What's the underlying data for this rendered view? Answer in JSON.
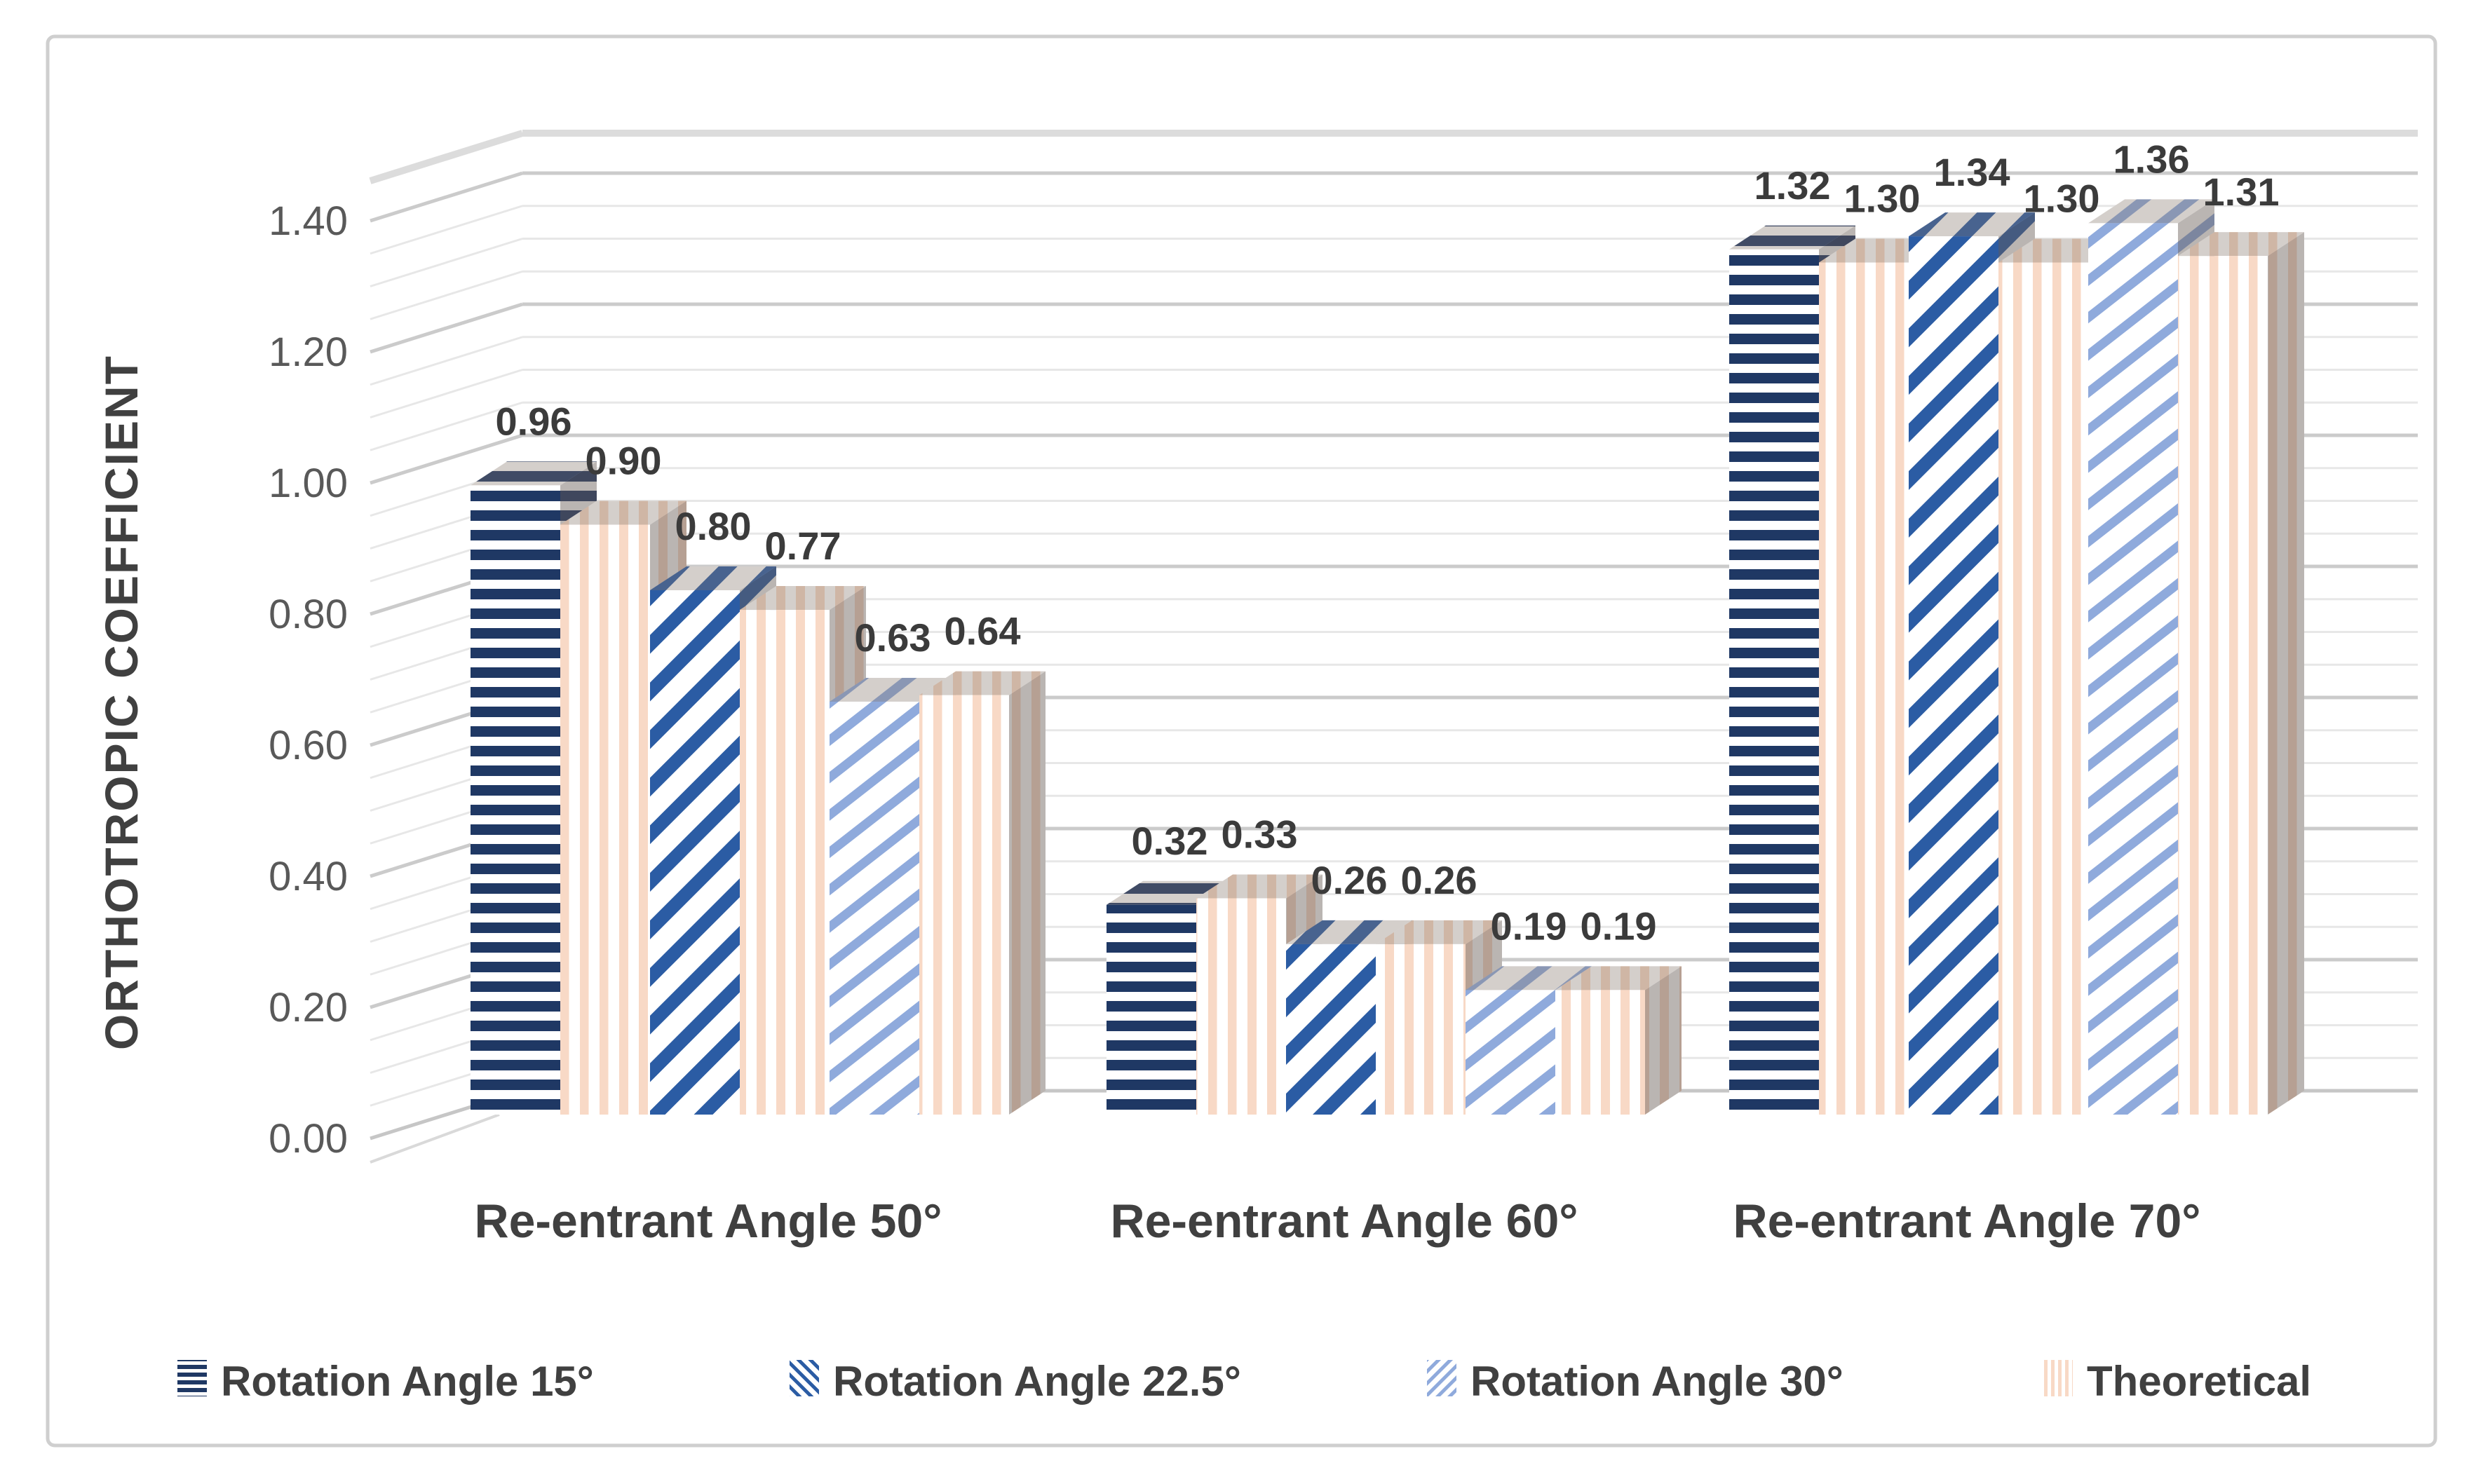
{
  "chart_data": {
    "type": "bar",
    "style": "3d-clustered-bar-with-pattern-fills",
    "title": "",
    "xlabel": "",
    "ylabel": "ORTHOTROPIC COEFFICIENT",
    "ylim": [
      0.0,
      1.4
    ],
    "grid": true,
    "legend_position": "bottom",
    "y_axis": {
      "min": 0.0,
      "max": 1.4,
      "tick_step": 0.2,
      "minor_step": 0.05,
      "tick_labels": [
        "0.00",
        "0.20",
        "0.40",
        "0.60",
        "0.80",
        "1.00",
        "1.20",
        "1.40"
      ]
    },
    "categories": [
      "Re-entrant Angle 50°",
      "Re-entrant Angle 60°",
      "Re-entrant Angle 70°"
    ],
    "series_styles": [
      {
        "name": "Rotation Angle 15°",
        "color": "#1F3864",
        "pattern": "horizontal-stripes"
      },
      {
        "name": "Rotation Angle 22.5°",
        "color": "#2B5CA4",
        "pattern": "wide-upward-diagonal"
      },
      {
        "name": "Rotation Angle 30°",
        "color": "#8FAADC",
        "pattern": "light-upward-diagonal"
      },
      {
        "name": "Theoretical",
        "color": "#F8D9C6",
        "pattern": "vertical-stripes"
      }
    ],
    "groups": [
      {
        "category": "Re-entrant Angle 50°",
        "bars": [
          {
            "series": "Rotation Angle 15°",
            "value": 0.96,
            "label": "0.96"
          },
          {
            "series": "Theoretical",
            "value": 0.9,
            "label": "0.90"
          },
          {
            "series": "Rotation Angle 22.5°",
            "value": 0.8,
            "label": "0.80"
          },
          {
            "series": "Theoretical",
            "value": 0.77,
            "label": "0.77"
          },
          {
            "series": "Rotation Angle 30°",
            "value": 0.63,
            "label": "0.63"
          },
          {
            "series": "Theoretical",
            "value": 0.64,
            "label": "0.64"
          }
        ]
      },
      {
        "category": "Re-entrant Angle 60°",
        "bars": [
          {
            "series": "Rotation Angle 15°",
            "value": 0.32,
            "label": "0.32"
          },
          {
            "series": "Theoretical",
            "value": 0.33,
            "label": "0.33"
          },
          {
            "series": "Rotation Angle 22.5°",
            "value": 0.26,
            "label": "0.26"
          },
          {
            "series": "Theoretical",
            "value": 0.26,
            "label": "0.26"
          },
          {
            "series": "Rotation Angle 30°",
            "value": 0.19,
            "label": "0.19"
          },
          {
            "series": "Theoretical",
            "value": 0.19,
            "label": "0.19"
          }
        ]
      },
      {
        "category": "Re-entrant Angle 70°",
        "bars": [
          {
            "series": "Rotation Angle 15°",
            "value": 1.32,
            "label": "1.32"
          },
          {
            "series": "Theoretical",
            "value": 1.3,
            "label": "1.30"
          },
          {
            "series": "Rotation Angle 22.5°",
            "value": 1.34,
            "label": "1.34"
          },
          {
            "series": "Theoretical",
            "value": 1.3,
            "label": "1.30"
          },
          {
            "series": "Rotation Angle 30°",
            "value": 1.36,
            "label": "1.36"
          },
          {
            "series": "Theoretical",
            "value": 1.31,
            "label": "1.31"
          }
        ]
      }
    ]
  },
  "legend": {
    "items": [
      {
        "label": "Rotation Angle 15°"
      },
      {
        "label": "Rotation Angle 22.5°"
      },
      {
        "label": "Rotation Angle 30°"
      },
      {
        "label": "Theoretical"
      }
    ]
  },
  "frame": {
    "border_color": "#cfcfcf",
    "background": "#ffffff"
  },
  "grid_colors": {
    "minor": "#e7e7e7",
    "major": "#cbcbcb",
    "floor": "#c6c6c6",
    "wall_top": "#dcdcdc"
  }
}
